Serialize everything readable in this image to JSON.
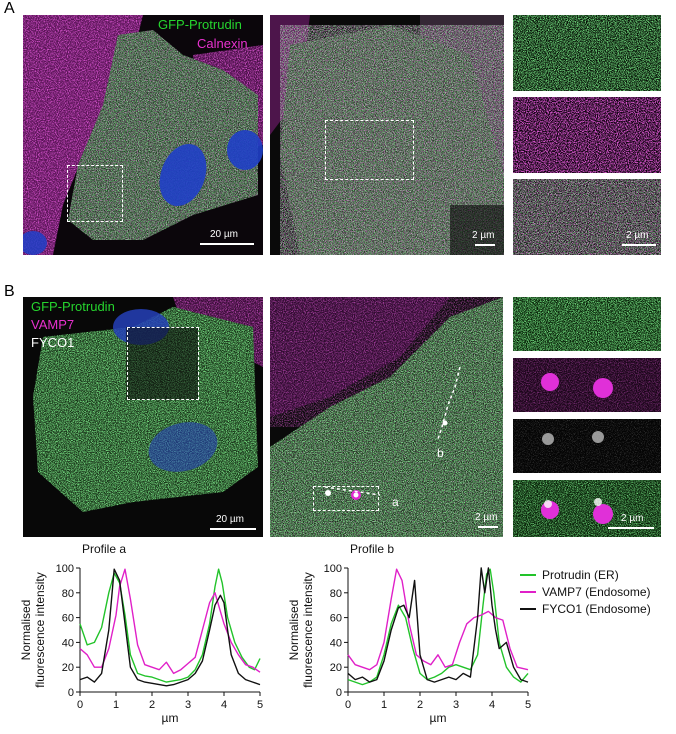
{
  "panel_a": {
    "letter": "A",
    "labels": {
      "protrudin": "GFP-Protrudin",
      "calnexin": "Calnexin"
    },
    "scale_bars": {
      "overview": "20 µm",
      "zoom": "2 µm",
      "inset": "2 µm"
    }
  },
  "panel_b": {
    "letter": "B",
    "labels": {
      "protrudin": "GFP-Protrudin",
      "vamp7": "VAMP7",
      "fyco1": "FYCO1"
    },
    "scale_bars": {
      "overview": "20 µm",
      "zoom": "2 µm",
      "inset": "2 µm"
    },
    "line_markers": {
      "a": "a",
      "b": "b"
    }
  },
  "colors": {
    "green": "#22c32a",
    "magenta": "#e020c8",
    "black": "#111111",
    "blue": "#2a4dcc"
  },
  "chart_data": [
    {
      "type": "line",
      "title": "Profile a",
      "xlabel": "µm",
      "ylabel_lines": [
        "Normalised",
        "fluorescence intensity"
      ],
      "xlim": [
        0,
        5
      ],
      "ylim": [
        0,
        100
      ],
      "xticks": [
        0,
        1,
        2,
        3,
        4,
        5
      ],
      "yticks": [
        0,
        20,
        40,
        60,
        80,
        100
      ],
      "series": [
        {
          "name": "Protrudin (ER)",
          "color": "#22c32a",
          "x": [
            0,
            0.2,
            0.4,
            0.6,
            0.8,
            0.95,
            1.1,
            1.25,
            1.4,
            1.6,
            1.8,
            2.0,
            2.2,
            2.4,
            2.6,
            2.8,
            3.0,
            3.2,
            3.4,
            3.6,
            3.75,
            3.85,
            3.95,
            4.1,
            4.3,
            4.5,
            4.7,
            4.85,
            5.0
          ],
          "y": [
            55,
            38,
            40,
            52,
            80,
            96,
            88,
            62,
            30,
            15,
            13,
            12,
            10,
            8,
            9,
            10,
            12,
            18,
            30,
            55,
            85,
            99,
            88,
            60,
            40,
            28,
            20,
            18,
            27
          ]
        },
        {
          "name": "VAMP7 (Endosome)",
          "color": "#e020c8",
          "x": [
            0,
            0.2,
            0.4,
            0.6,
            0.8,
            1.0,
            1.1,
            1.25,
            1.4,
            1.6,
            1.8,
            2.0,
            2.2,
            2.4,
            2.6,
            2.8,
            3.0,
            3.2,
            3.4,
            3.6,
            3.75,
            3.9,
            4.0,
            4.2,
            4.4,
            4.6,
            4.8,
            5.0
          ],
          "y": [
            35,
            30,
            20,
            20,
            35,
            62,
            85,
            99,
            75,
            38,
            22,
            20,
            18,
            24,
            15,
            18,
            23,
            28,
            50,
            72,
            80,
            65,
            55,
            40,
            30,
            22,
            20,
            16
          ]
        },
        {
          "name": "FYCO1 (Endosome)",
          "color": "#111111",
          "x": [
            0,
            0.2,
            0.4,
            0.6,
            0.8,
            0.95,
            1.1,
            1.25,
            1.4,
            1.6,
            1.8,
            2.0,
            2.2,
            2.4,
            2.6,
            2.8,
            3.0,
            3.2,
            3.4,
            3.6,
            3.75,
            3.9,
            4.0,
            4.1,
            4.2,
            4.4,
            4.6,
            4.8,
            5.0
          ],
          "y": [
            10,
            12,
            8,
            15,
            50,
            99,
            90,
            55,
            20,
            10,
            8,
            7,
            6,
            5,
            6,
            8,
            10,
            15,
            25,
            50,
            70,
            78,
            72,
            50,
            30,
            15,
            10,
            8,
            6
          ]
        }
      ]
    },
    {
      "type": "line",
      "title": "Profile b",
      "xlabel": "µm",
      "ylabel_lines": [
        "Normalised",
        "fluorescence intensity"
      ],
      "xlim": [
        0,
        5
      ],
      "ylim": [
        0,
        100
      ],
      "xticks": [
        0,
        1,
        2,
        3,
        4,
        5
      ],
      "yticks": [
        0,
        20,
        40,
        60,
        80,
        100
      ],
      "series": [
        {
          "name": "Protrudin (ER)",
          "color": "#22c32a",
          "x": [
            0,
            0.2,
            0.4,
            0.6,
            0.8,
            1.0,
            1.2,
            1.4,
            1.6,
            1.8,
            2.0,
            2.2,
            2.4,
            2.6,
            2.8,
            3.0,
            3.2,
            3.4,
            3.6,
            3.75,
            3.85,
            3.95,
            4.05,
            4.2,
            4.4,
            4.6,
            4.8,
            5.0
          ],
          "y": [
            10,
            8,
            6,
            8,
            12,
            30,
            55,
            70,
            60,
            35,
            15,
            10,
            12,
            15,
            20,
            22,
            20,
            18,
            30,
            70,
            95,
            99,
            80,
            40,
            20,
            12,
            8,
            15
          ]
        },
        {
          "name": "VAMP7 (Endosome)",
          "color": "#e020c8",
          "x": [
            0,
            0.2,
            0.4,
            0.6,
            0.8,
            1.0,
            1.2,
            1.35,
            1.5,
            1.7,
            1.9,
            2.1,
            2.3,
            2.5,
            2.7,
            2.9,
            3.1,
            3.3,
            3.5,
            3.7,
            3.9,
            4.1,
            4.3,
            4.5,
            4.7,
            5.0
          ],
          "y": [
            30,
            22,
            20,
            18,
            22,
            40,
            75,
            99,
            90,
            55,
            30,
            25,
            22,
            30,
            20,
            22,
            40,
            55,
            60,
            62,
            65,
            60,
            58,
            35,
            20,
            18
          ]
        },
        {
          "name": "FYCO1 (Endosome)",
          "color": "#111111",
          "x": [
            0,
            0.2,
            0.4,
            0.6,
            0.8,
            1.0,
            1.2,
            1.4,
            1.55,
            1.7,
            1.85,
            2.0,
            2.2,
            2.4,
            2.6,
            2.8,
            3.0,
            3.2,
            3.4,
            3.6,
            3.7,
            3.8,
            3.9,
            4.0,
            4.1,
            4.2,
            4.4,
            4.6,
            4.8,
            5.0
          ],
          "y": [
            15,
            10,
            12,
            8,
            10,
            25,
            50,
            68,
            70,
            60,
            90,
            30,
            10,
            8,
            10,
            12,
            10,
            15,
            12,
            60,
            100,
            80,
            100,
            70,
            50,
            35,
            40,
            20,
            10,
            8
          ]
        }
      ]
    }
  ]
}
